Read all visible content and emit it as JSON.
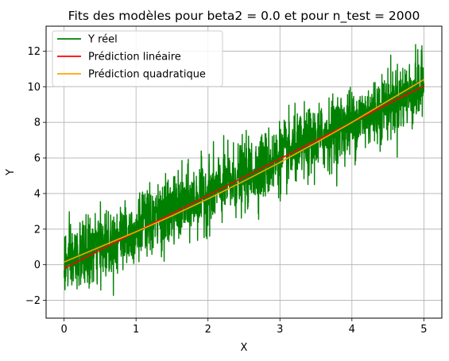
{
  "chart_data": {
    "type": "line",
    "title": "Fits des modèles pour beta2 = 0.0 et pour n_test = 2000",
    "xlabel": "X",
    "ylabel": "Y",
    "xlim": [
      -0.25,
      5.25
    ],
    "ylim": [
      -3.0,
      13.4
    ],
    "xticks": [
      0,
      1,
      2,
      3,
      4,
      5
    ],
    "xtick_labels": [
      "0",
      "1",
      "2",
      "3",
      "4",
      "5"
    ],
    "yticks": [
      -2,
      0,
      2,
      4,
      6,
      8,
      10,
      12
    ],
    "ytick_labels": [
      "−2",
      "0",
      "2",
      "4",
      "6",
      "8",
      "10",
      "12"
    ],
    "grid": true,
    "legend_position": "top-left",
    "series": [
      {
        "name": "Y réel",
        "color": "#008000",
        "noisy": true,
        "n_points": 2000,
        "x_range": [
          0,
          5
        ],
        "trend_intercept": 0.0,
        "trend_slope": 2.0,
        "noise_sd": 0.95,
        "observed_min": -2.2,
        "observed_max": 12.7
      },
      {
        "name": "Prédiction linéaire",
        "color": "#ff0000",
        "x": [
          0,
          1,
          2,
          3,
          4,
          5
        ],
        "values": [
          -0.2,
          1.85,
          3.9,
          5.95,
          8.0,
          10.05
        ]
      },
      {
        "name": "Prédiction quadratique",
        "color": "#ffa500",
        "x": [
          0,
          0.5,
          1,
          1.5,
          2,
          2.5,
          3,
          3.5,
          4,
          4.5,
          5
        ],
        "values": [
          0.15,
          1.0,
          1.85,
          2.75,
          3.7,
          4.7,
          5.75,
          6.85,
          8.0,
          9.2,
          10.4
        ]
      }
    ]
  }
}
